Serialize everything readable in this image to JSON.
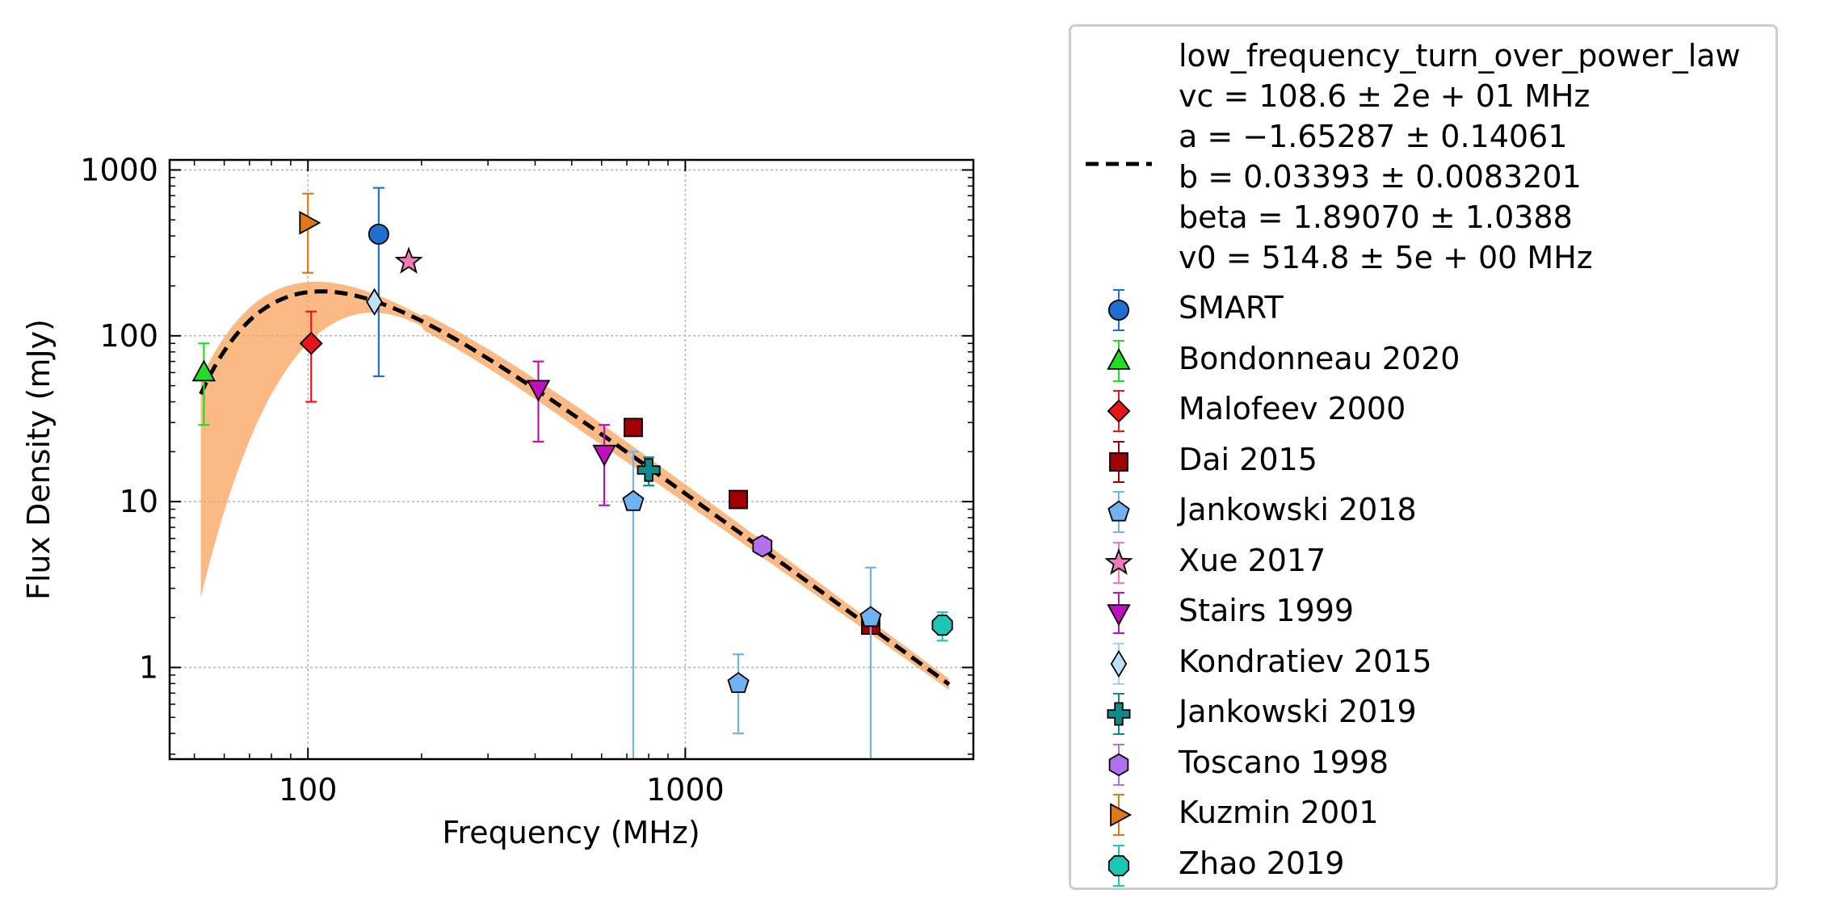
{
  "chart_data": {
    "type": "scatter",
    "xlabel": "Frequency (MHz)",
    "ylabel": "Flux Density (mJy)",
    "xscale": "log",
    "yscale": "log",
    "xlim": [
      43,
      5800
    ],
    "ylim": [
      0.28,
      1150
    ],
    "x_ticks": [
      {
        "value": 100,
        "label": "100"
      },
      {
        "value": 1000,
        "label": "1000"
      }
    ],
    "y_ticks": [
      {
        "value": 1,
        "label": "1"
      },
      {
        "value": 10,
        "label": "10"
      },
      {
        "value": 100,
        "label": "100"
      },
      {
        "value": 1000,
        "label": "1000"
      }
    ],
    "grid": true,
    "legend_position": "outside-right",
    "fit": {
      "name": "low_frequency_turn_over_power_law",
      "params": [
        "vc = 108.6 ± 2e + 01 MHz",
        "a = −1.65287 ± 0.14061",
        "b = 0.03393 ± 0.0083201",
        "beta = 1.89070 ± 1.0388",
        "v0 = 514.8 ± 5e + 00 MHz"
      ],
      "vc": 108.6,
      "a": -1.65287,
      "b": 0.03393,
      "beta": 1.8907,
      "v0": 514.8,
      "x_range": [
        52,
        5000
      ],
      "color": "#000000",
      "band_color": "#f9a15a"
    },
    "series": [
      {
        "name": "SMART",
        "marker": "circle",
        "color": "#1f6fd1",
        "ecolor": "#1f6fd1",
        "points": [
          {
            "x": 154,
            "y": 410,
            "ylo": 57,
            "yhi": 780
          }
        ]
      },
      {
        "name": "Bondonneau 2020",
        "marker": "triangle-up",
        "color": "#22dd22",
        "ecolor": "#22dd22",
        "points": [
          {
            "x": 53,
            "y": 60,
            "ylo": 29,
            "yhi": 90
          }
        ]
      },
      {
        "name": "Malofeev 2000",
        "marker": "diamond",
        "color": "#e8141c",
        "ecolor": "#e8141c",
        "points": [
          {
            "x": 102,
            "y": 90,
            "ylo": 40,
            "yhi": 140
          }
        ]
      },
      {
        "name": "Dai 2015",
        "marker": "square",
        "color": "#a00000",
        "ecolor": "#a00000",
        "points": [
          {
            "x": 728,
            "y": 28,
            "ylo": 25,
            "yhi": 31
          },
          {
            "x": 1382,
            "y": 10.3,
            "ylo": 9.5,
            "yhi": 11.1
          },
          {
            "x": 3100,
            "y": 1.8,
            "ylo": 1.65,
            "yhi": 1.95
          }
        ]
      },
      {
        "name": "Jankowski 2018",
        "marker": "pentagon",
        "color": "#6fb4f0",
        "ecolor": "#6fb4f0",
        "points": [
          {
            "x": 728,
            "y": 10,
            "ylo": 0.01,
            "yhi": 20
          },
          {
            "x": 1382,
            "y": 0.8,
            "ylo": 0.4,
            "yhi": 1.2
          },
          {
            "x": 3100,
            "y": 2.0,
            "ylo": 0.01,
            "yhi": 4.0
          }
        ]
      },
      {
        "name": "Xue 2017",
        "marker": "star",
        "color": "#f07ab8",
        "ecolor": "#f07ab8",
        "points": [
          {
            "x": 185,
            "y": 280,
            "ylo": 280,
            "yhi": 280
          }
        ]
      },
      {
        "name": "Stairs 1999",
        "marker": "triangle-down",
        "color": "#bf10bf",
        "ecolor": "#bf10bf",
        "points": [
          {
            "x": 408,
            "y": 48,
            "ylo": 23,
            "yhi": 70
          },
          {
            "x": 610,
            "y": 19.5,
            "ylo": 9.5,
            "yhi": 29
          }
        ]
      },
      {
        "name": "Kondratiev 2015",
        "marker": "thin-diamond",
        "color": "#bfe0f7",
        "ecolor": "#9fd2f2",
        "points": [
          {
            "x": 150,
            "y": 160,
            "ylo": 160,
            "yhi": 160
          }
        ]
      },
      {
        "name": "Jankowski 2019",
        "marker": "plus",
        "color": "#0f8a8a",
        "ecolor": "#0f8a8a",
        "points": [
          {
            "x": 800,
            "y": 15.5,
            "ylo": 12.5,
            "yhi": 18.5
          }
        ]
      },
      {
        "name": "Toscano 1998",
        "marker": "hexagon",
        "color": "#b070f0",
        "ecolor": "#b070f0",
        "points": [
          {
            "x": 1600,
            "y": 5.4,
            "ylo": 4.8,
            "yhi": 6.1
          }
        ]
      },
      {
        "name": "Kuzmin 2001",
        "marker": "triangle-right",
        "color": "#e07818",
        "ecolor": "#e07818",
        "points": [
          {
            "x": 100,
            "y": 480,
            "ylo": 240,
            "yhi": 720
          }
        ]
      },
      {
        "name": "Zhao 2019",
        "marker": "octagon",
        "color": "#1ec7b5",
        "ecolor": "#1ec7b5",
        "points": [
          {
            "x": 4800,
            "y": 1.8,
            "ylo": 1.45,
            "yhi": 2.15
          }
        ]
      }
    ]
  }
}
